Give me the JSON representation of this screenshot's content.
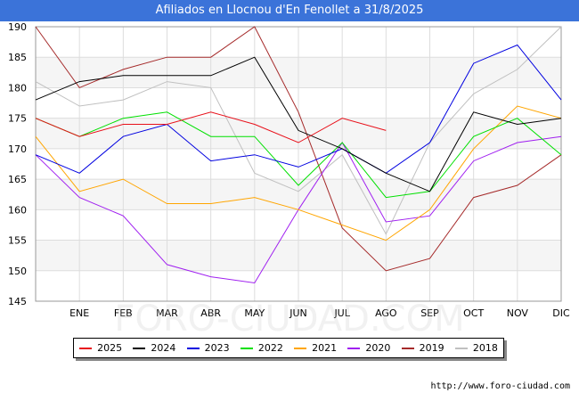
{
  "title": "Afiliados en Llocnou d'En Fenollet a 31/8/2025",
  "footer_url": "http://www.foro-ciudad.com",
  "watermark": "FORO-CIUDAD.COM",
  "chart_data": {
    "type": "line",
    "title": "Afiliados en Llocnou d'En Fenollet a 31/8/2025",
    "x": [
      "",
      "ENE",
      "FEB",
      "MAR",
      "ABR",
      "MAY",
      "JUN",
      "JUL",
      "AGO",
      "SEP",
      "OCT",
      "NOV",
      "DIC"
    ],
    "ylim": [
      145,
      190
    ],
    "yticks": [
      145,
      150,
      155,
      160,
      165,
      170,
      175,
      180,
      185,
      190
    ],
    "grid": true,
    "legend_position": "bottom",
    "series": [
      {
        "name": "2025",
        "color": "#e8101a",
        "values": [
          175,
          172,
          174,
          174,
          176,
          174,
          171,
          175,
          173,
          null,
          null,
          null,
          null
        ]
      },
      {
        "name": "2024",
        "color": "#000000",
        "values": [
          178,
          181,
          182,
          182,
          182,
          185,
          173,
          170,
          166,
          163,
          176,
          174,
          175
        ]
      },
      {
        "name": "2023",
        "color": "#0000e0",
        "values": [
          169,
          166,
          172,
          174,
          168,
          169,
          167,
          170,
          166,
          171,
          184,
          187,
          178
        ]
      },
      {
        "name": "2022",
        "color": "#00e000",
        "values": [
          175,
          172,
          175,
          176,
          172,
          172,
          164,
          171,
          162,
          163,
          172,
          175,
          169
        ]
      },
      {
        "name": "2021",
        "color": "#ffa500",
        "values": [
          172,
          163,
          165,
          161,
          161,
          162,
          160,
          null,
          155,
          160,
          170,
          177,
          175
        ]
      },
      {
        "name": "2020",
        "color": "#a020f0",
        "values": [
          169,
          162,
          159,
          151,
          149,
          148,
          160,
          171,
          158,
          159,
          168,
          171,
          172
        ]
      },
      {
        "name": "2019",
        "color": "#a52a2a",
        "values": [
          190,
          180,
          183,
          185,
          185,
          190,
          176,
          157,
          150,
          152,
          162,
          164,
          169
        ]
      },
      {
        "name": "2018",
        "color": "#c0c0c0",
        "values": [
          181,
          177,
          178,
          181,
          180,
          166,
          163,
          169,
          156,
          171,
          179,
          183,
          190
        ]
      }
    ]
  }
}
